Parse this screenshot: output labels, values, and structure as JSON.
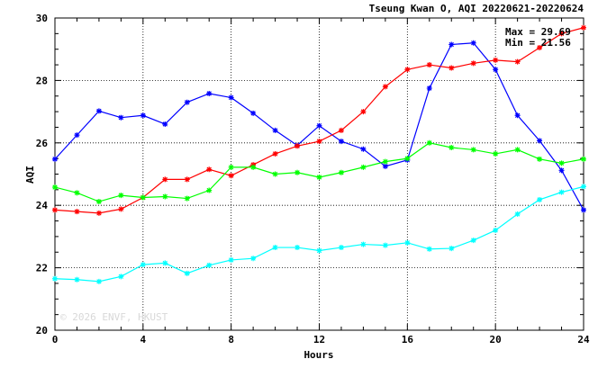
{
  "chart_data": {
    "type": "line",
    "title": "Tseung Kwan O, AQI 20220621-20220624",
    "xlabel": "Hours",
    "ylabel": "AQI",
    "xlim": [
      0,
      24
    ],
    "ylim": [
      20,
      30
    ],
    "xticks": [
      0,
      4,
      8,
      12,
      16,
      20,
      24
    ],
    "yticks": [
      20,
      22,
      24,
      26,
      28,
      30
    ],
    "grid": true,
    "stats": {
      "max": "Max = 29.69",
      "min": "Min = 21.56"
    },
    "watermark": "© 2026 ENVF, HKUST",
    "x": [
      0,
      1,
      2,
      3,
      4,
      5,
      6,
      7,
      8,
      9,
      10,
      11,
      12,
      13,
      14,
      15,
      16,
      17,
      18,
      19,
      20,
      21,
      22,
      23,
      24
    ],
    "series": [
      {
        "color": "#0000ff",
        "values": [
          25.48,
          26.25,
          27.02,
          26.81,
          26.88,
          26.6,
          27.3,
          27.58,
          27.45,
          26.95,
          26.4,
          25.92,
          26.55,
          26.05,
          25.8,
          25.25,
          25.45,
          27.75,
          29.15,
          29.2,
          28.35,
          26.88,
          26.07,
          25.12,
          23.85
        ]
      },
      {
        "color": "#ff0000",
        "values": [
          23.85,
          23.8,
          23.75,
          23.88,
          24.25,
          24.83,
          24.83,
          25.15,
          24.95,
          25.3,
          25.65,
          25.9,
          26.05,
          26.4,
          27.0,
          27.8,
          28.35,
          28.5,
          28.4,
          28.55,
          28.65,
          28.6,
          29.05,
          29.5,
          29.69
        ]
      },
      {
        "color": "#00ff00",
        "values": [
          24.58,
          24.4,
          24.12,
          24.32,
          24.25,
          24.28,
          24.22,
          24.48,
          25.22,
          25.22,
          25.0,
          25.05,
          24.9,
          25.05,
          25.22,
          25.4,
          25.5,
          26.0,
          25.85,
          25.78,
          25.65,
          25.78,
          25.48,
          25.35,
          25.48
        ]
      },
      {
        "color": "#00ffff",
        "values": [
          21.65,
          21.62,
          21.56,
          21.72,
          22.1,
          22.15,
          21.82,
          22.08,
          22.25,
          22.3,
          22.65,
          22.65,
          22.55,
          22.65,
          22.75,
          22.72,
          22.8,
          22.6,
          22.62,
          22.88,
          23.2,
          23.72,
          24.18,
          24.42,
          24.6
        ]
      }
    ]
  }
}
